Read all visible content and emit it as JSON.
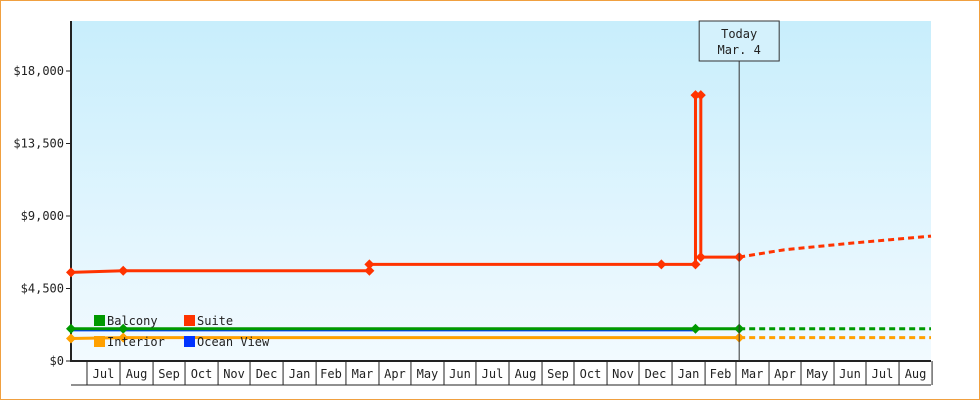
{
  "chart_data": {
    "type": "line",
    "title": "",
    "xlabel": "",
    "ylabel": "",
    "ylim": [
      0,
      21000
    ],
    "xlim": [
      "2014-06-16",
      "2016-08-31"
    ],
    "y_ticks": [
      "$0",
      "$4,500",
      "$9,000",
      "$13,500",
      "$18,000"
    ],
    "y_tick_values": [
      0,
      4500,
      9000,
      13500,
      18000
    ],
    "x_tick_labels": [
      "Jul",
      "Aug",
      "Sep",
      "Oct",
      "Nov",
      "Dec",
      "Jan",
      "Feb",
      "Mar",
      "Apr",
      "May",
      "Jun",
      "Jul",
      "Aug",
      "Sep",
      "Oct",
      "Nov",
      "Dec",
      "Jan",
      "Feb",
      "Mar",
      "Apr",
      "May",
      "Jun",
      "Jul",
      "Aug"
    ],
    "x_tick_dates": [
      "2014-07-01",
      "2014-08-01",
      "2014-09-01",
      "2014-10-01",
      "2014-11-01",
      "2014-12-01",
      "2015-01-01",
      "2015-02-01",
      "2015-03-01",
      "2015-04-01",
      "2015-05-01",
      "2015-06-01",
      "2015-07-01",
      "2015-08-01",
      "2015-09-01",
      "2015-10-01",
      "2015-11-01",
      "2015-12-01",
      "2016-01-01",
      "2016-02-01",
      "2016-03-01",
      "2016-04-01",
      "2016-05-01",
      "2016-06-01",
      "2016-07-01",
      "2016-08-01"
    ],
    "today": {
      "line1": "Today",
      "line2": "Mar. 4",
      "date": "2016-03-04"
    },
    "legend_placement": "bottom-left",
    "series": [
      {
        "name": "Balcony",
        "color": "#009900",
        "points": [
          [
            "2014-06-16",
            2000
          ],
          [
            "2014-08-04",
            2000
          ],
          [
            "2016-01-23",
            2000
          ],
          [
            "2016-03-04",
            2000
          ]
        ],
        "forecast": [
          [
            "2016-03-04",
            2000
          ],
          [
            "2016-08-31",
            2000
          ]
        ]
      },
      {
        "name": "Suite",
        "color": "#ff3300",
        "points": [
          [
            "2014-06-16",
            5500
          ],
          [
            "2014-08-04",
            5600
          ],
          [
            "2015-03-23",
            5600
          ],
          [
            "2015-03-23",
            6000
          ],
          [
            "2015-12-22",
            6000
          ],
          [
            "2016-01-23",
            6000
          ],
          [
            "2016-01-23",
            16500
          ],
          [
            "2016-01-28",
            16500
          ],
          [
            "2016-01-28",
            6450
          ],
          [
            "2016-03-04",
            6450
          ]
        ],
        "forecast": [
          [
            "2016-03-04",
            6450
          ],
          [
            "2016-04-15",
            6900
          ],
          [
            "2016-06-15",
            7300
          ],
          [
            "2016-08-31",
            7750
          ]
        ]
      },
      {
        "name": "Interior",
        "color": "#ffa000",
        "points": [
          [
            "2014-06-16",
            1400
          ],
          [
            "2014-08-04",
            1450
          ],
          [
            "2016-03-04",
            1450
          ]
        ],
        "forecast": [
          [
            "2016-03-04",
            1450
          ],
          [
            "2016-08-31",
            1450
          ]
        ]
      },
      {
        "name": "Ocean View",
        "color": "#0033ff",
        "points": [
          [
            "2014-06-16",
            1900
          ],
          [
            "2016-01-23",
            1900
          ]
        ],
        "forecast": []
      }
    ]
  }
}
